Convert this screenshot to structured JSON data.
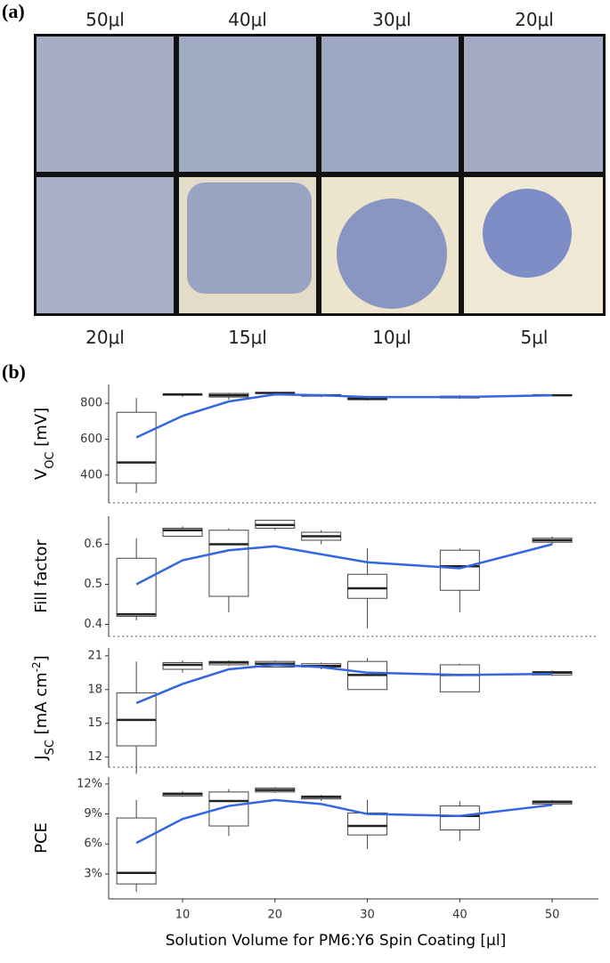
{
  "panel_a": {
    "label": "(a)",
    "top_labels": [
      "50μl",
      "40μl",
      "30μl",
      "20μl"
    ],
    "bottom_labels": [
      "20μl",
      "15μl",
      "10μl",
      "5μl"
    ]
  },
  "panel_b_label": "(b)",
  "chart_data": [
    {
      "type": "box",
      "ylabel": [
        {
          "text": "V"
        },
        {
          "text": "OC",
          "sub": true
        },
        {
          "text": " [mV]"
        }
      ],
      "x": [
        5,
        10,
        15,
        20,
        25,
        30,
        40,
        50
      ],
      "xlim": [
        2,
        55
      ],
      "ylim": [
        245,
        905
      ],
      "yticks": [
        400,
        600,
        800
      ],
      "min": [
        300,
        835,
        820,
        850,
        835,
        815,
        825,
        840
      ],
      "q1": [
        355,
        845,
        835,
        855,
        840,
        820,
        830,
        843
      ],
      "median": [
        470,
        850,
        845,
        858,
        845,
        825,
        835,
        845
      ],
      "q3": [
        750,
        850,
        855,
        860,
        848,
        830,
        840,
        848
      ],
      "max": [
        830,
        855,
        860,
        865,
        850,
        840,
        845,
        850
      ],
      "trend": [
        610,
        730,
        810,
        850,
        845,
        835,
        835,
        845
      ],
      "trend_color": "#3366e0"
    },
    {
      "type": "box",
      "ylabel": [
        {
          "text": "Fill factor"
        }
      ],
      "x": [
        5,
        10,
        15,
        20,
        25,
        30,
        40,
        50
      ],
      "xlim": [
        2,
        55
      ],
      "ylim": [
        0.37,
        0.67
      ],
      "yticks": [
        0.4,
        0.5,
        0.6
      ],
      "min": [
        0.41,
        0.62,
        0.43,
        0.635,
        0.6,
        0.39,
        0.43,
        0.6
      ],
      "q1": [
        0.42,
        0.62,
        0.47,
        0.64,
        0.61,
        0.465,
        0.485,
        0.605
      ],
      "median": [
        0.425,
        0.635,
        0.6,
        0.648,
        0.62,
        0.49,
        0.545,
        0.61
      ],
      "q3": [
        0.565,
        0.64,
        0.635,
        0.66,
        0.63,
        0.525,
        0.585,
        0.615
      ],
      "max": [
        0.615,
        0.645,
        0.64,
        0.66,
        0.635,
        0.59,
        0.59,
        0.62
      ],
      "trend": [
        0.5,
        0.56,
        0.585,
        0.595,
        0.575,
        0.555,
        0.54,
        0.6
      ],
      "trend_color": "#3366e0"
    },
    {
      "type": "box",
      "ylabel": [
        {
          "text": "J"
        },
        {
          "text": "SC",
          "sub": true
        },
        {
          "text": " [mA cm"
        },
        {
          "text": "-2",
          "sup": true
        },
        {
          "text": "]"
        }
      ],
      "x": [
        5,
        10,
        15,
        20,
        25,
        30,
        40,
        50
      ],
      "xlim": [
        2,
        55
      ],
      "ylim": [
        11.1,
        21.7
      ],
      "yticks": [
        12,
        15,
        18,
        21
      ],
      "min": [
        10.5,
        19.5,
        20.1,
        20,
        19.8,
        18,
        17.8,
        19.2
      ],
      "q1": [
        13,
        19.8,
        20.2,
        20,
        20,
        18,
        17.8,
        19.3
      ],
      "median": [
        15.3,
        20.2,
        20.4,
        20.3,
        20.1,
        19.3,
        19.3,
        19.5
      ],
      "q3": [
        17.7,
        20.4,
        20.5,
        20.5,
        20.3,
        20.5,
        20.2,
        19.6
      ],
      "max": [
        20.5,
        20.6,
        20.6,
        20.6,
        20.4,
        20.8,
        20.3,
        19.7
      ],
      "trend": [
        16.8,
        18.5,
        19.8,
        20.2,
        20,
        19.5,
        19.3,
        19.4
      ],
      "trend_color": "#3366e0"
    },
    {
      "type": "box",
      "ylabel": [
        {
          "text": "PCE"
        }
      ],
      "x": [
        5,
        10,
        15,
        20,
        25,
        30,
        40,
        50
      ],
      "xlim": [
        2,
        55
      ],
      "ylim": [
        0.5,
        12.7
      ],
      "yticks": [
        {
          "value": 3,
          "label": "3%"
        },
        {
          "value": 6,
          "label": "6%"
        },
        {
          "value": 9,
          "label": "9%"
        },
        {
          "value": 12,
          "label": "12%"
        }
      ],
      "min": [
        1.2,
        10.7,
        6.8,
        11.1,
        10.3,
        5.5,
        6.3,
        9.9
      ],
      "q1": [
        2,
        10.8,
        7.8,
        11.2,
        10.5,
        6.9,
        7.4,
        10
      ],
      "median": [
        3.1,
        11,
        10.3,
        11.4,
        10.7,
        7.8,
        8.8,
        10.2
      ],
      "q3": [
        8.6,
        11.1,
        11.2,
        11.6,
        10.8,
        9.1,
        9.8,
        10.3
      ],
      "max": [
        10.4,
        11.3,
        11.5,
        11.7,
        10.9,
        10.4,
        10.3,
        10.4
      ],
      "trend": [
        6.1,
        8.5,
        9.8,
        10.4,
        10,
        9,
        8.8,
        9.9
      ],
      "trend_color": "#3366e0",
      "xticks": [
        10,
        20,
        30,
        40,
        50
      ],
      "xlabel": "Solution Volume for PM6:Y6 Spin Coating [μl]"
    }
  ]
}
